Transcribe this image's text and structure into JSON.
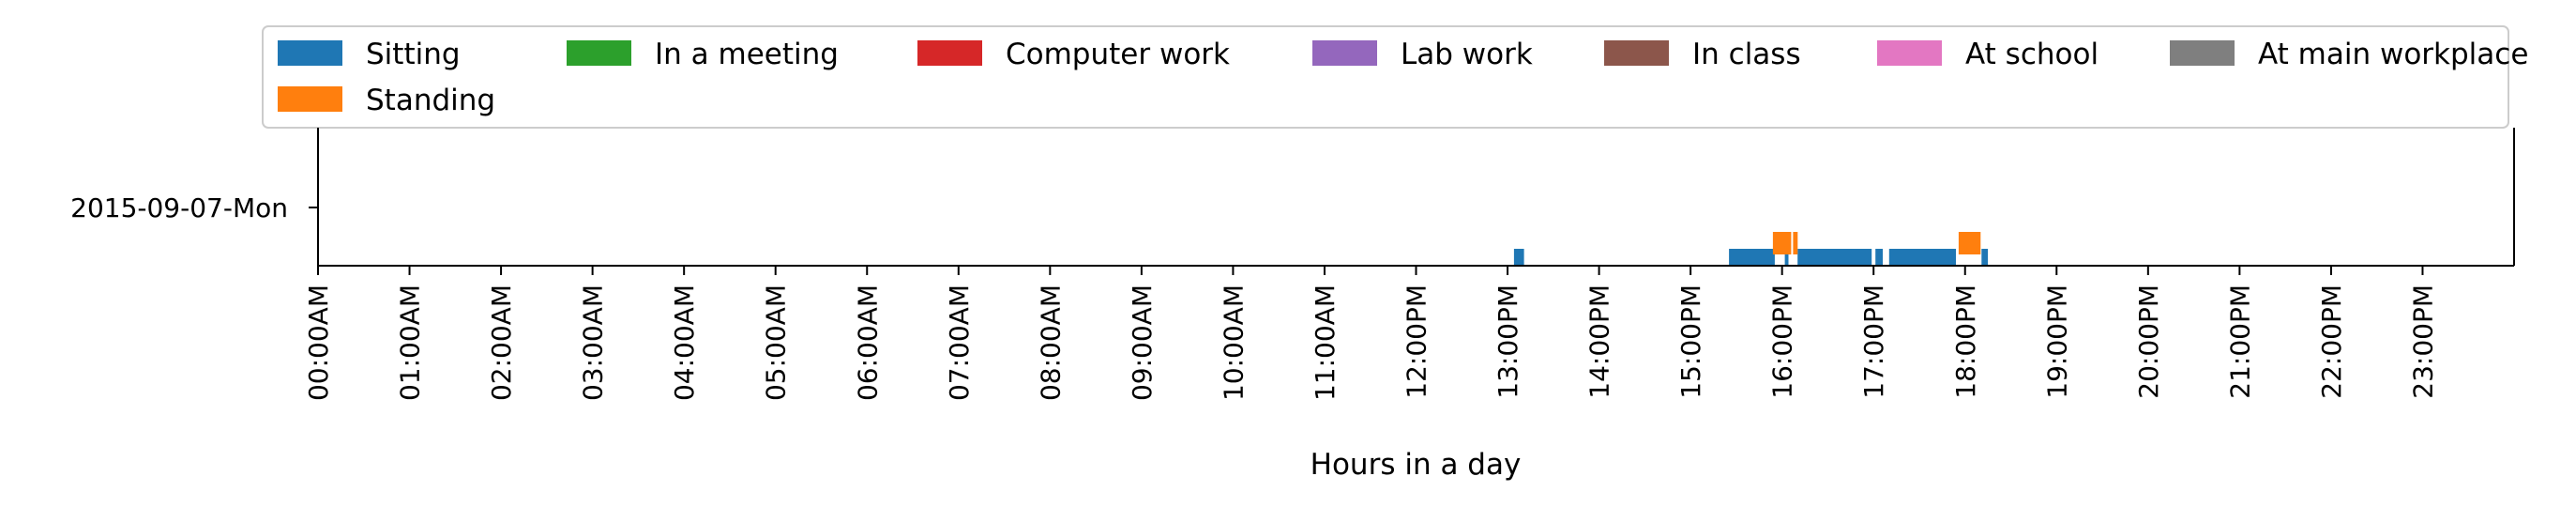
{
  "chart_data": {
    "type": "timeline",
    "xlabel": "Hours in a day",
    "ylabel": "",
    "xlim": [
      0,
      24
    ],
    "grid": false,
    "legend_position": "top",
    "rows": [
      "2015-09-07-Mon"
    ],
    "x_ticks": [
      "00:00AM",
      "01:00AM",
      "02:00AM",
      "03:00AM",
      "04:00AM",
      "05:00AM",
      "06:00AM",
      "07:00AM",
      "08:00AM",
      "09:00AM",
      "10:00AM",
      "11:00AM",
      "12:00PM",
      "13:00PM",
      "14:00PM",
      "15:00PM",
      "16:00PM",
      "17:00PM",
      "18:00PM",
      "19:00PM",
      "20:00PM",
      "21:00PM",
      "22:00PM",
      "23:00PM"
    ],
    "legend": [
      {
        "name": "Sitting",
        "color": "#1f77b4"
      },
      {
        "name": "In a meeting",
        "color": "#2ca02c"
      },
      {
        "name": "Computer work",
        "color": "#d62728"
      },
      {
        "name": "Lab work",
        "color": "#9467bd"
      },
      {
        "name": "In class",
        "color": "#8c564b"
      },
      {
        "name": "At school",
        "color": "#e377c2"
      },
      {
        "name": "At main workplace",
        "color": "#7f7f7f"
      },
      {
        "name": "Standing",
        "color": "#ff7f0e"
      }
    ],
    "series": [
      {
        "name": "Sitting",
        "color": "#1f77b4",
        "lane": 0,
        "intervals": [
          [
            13.07,
            13.18
          ],
          [
            15.42,
            15.92
          ],
          [
            16.03,
            16.07
          ],
          [
            16.17,
            16.98
          ],
          [
            17.02,
            17.1
          ],
          [
            17.17,
            17.9
          ],
          [
            18.18,
            18.25
          ]
        ]
      },
      {
        "name": "Standing",
        "color": "#ff7f0e",
        "lane": 1,
        "intervals": [
          [
            15.9,
            16.1
          ],
          [
            16.12,
            16.17
          ],
          [
            17.93,
            18.17
          ]
        ]
      }
    ]
  }
}
